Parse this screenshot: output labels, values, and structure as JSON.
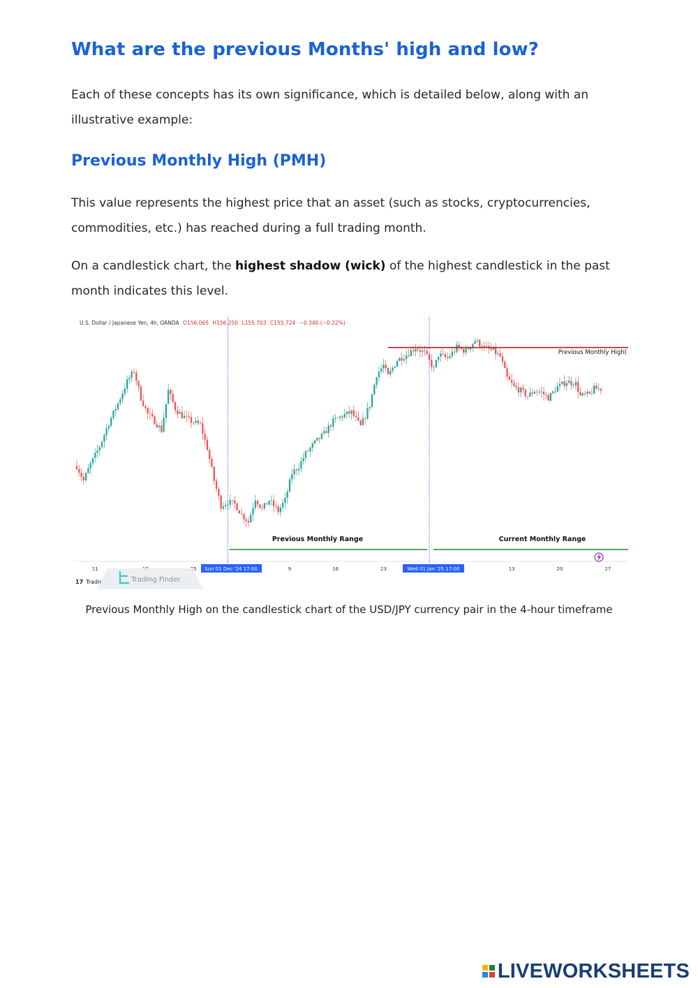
{
  "title": "What are the previous Months' high and low?",
  "intro": "Each of these concepts has its own significance, which is detailed below, along with an illustrative example:",
  "pmh": {
    "heading": "Previous Monthly High (PMH)",
    "p1": "This value represents the highest price that an asset (such as stocks, cryptocurrencies, commodities, etc.) has reached during a full trading month.",
    "p2_pre": "On a candlestick chart, the ",
    "p2_bold": "highest shadow (wick)",
    "p2_post": " of the highest candlestick in the past month indicates this level."
  },
  "figure": {
    "caption": "Previous Monthly High on the candlestick chart of the USD/JPY currency pair in the 4-hour timeframe",
    "symbol_label": "U.S. Dollar / Japanese Yen, 4h, OANDA",
    "ohlc": {
      "o": "O156.065",
      "h": "H156.250",
      "l": "L155.703",
      "c": "C155.724",
      "chg": "−0.340 (−0.22%)"
    },
    "pmh_label": "Previous Monthly High(",
    "prev_range_label": "Previous Monthly Range",
    "curr_range_label": "Current Monthly Range",
    "date_marker_1": "Sun 01 Dec '24   17:00",
    "date_marker_2": "Wed 01 Jan '25   17:00",
    "x_ticks": [
      "11",
      "18",
      "25",
      "9",
      "16",
      "23",
      "13",
      "20",
      "27"
    ],
    "watermark_text": "Trading Finder",
    "tv_badge": "Tradin",
    "colors": {
      "up": "#26a69a",
      "down": "#ef5350",
      "pmh_line": "#b71c1c",
      "range_line": "#1b8a1b",
      "marker": "#2962ff"
    }
  },
  "chart_data": {
    "type": "candlestick",
    "title": "U.S. Dollar / Japanese Yen, 4h, OANDA",
    "xlabel": "",
    "ylabel": "",
    "ylim": [
      148.5,
      159.3
    ],
    "x_ticks": [
      "11",
      "18",
      "25",
      "9",
      "16",
      "23",
      "13",
      "20",
      "27"
    ],
    "x_tick_index": [
      8,
      30,
      51,
      93,
      113,
      134,
      190,
      211,
      232
    ],
    "month_boundaries_index": [
      66,
      154
    ],
    "path": [
      [
        0,
        152.4
      ],
      [
        3,
        151.6
      ],
      [
        6,
        152.5
      ],
      [
        10,
        153.5
      ],
      [
        14,
        154.8
      ],
      [
        18,
        155.9
      ],
      [
        22,
        157.1
      ],
      [
        25,
        157.7
      ],
      [
        28,
        156.2
      ],
      [
        31,
        155.3
      ],
      [
        34,
        154.9
      ],
      [
        37,
        154.4
      ],
      [
        40,
        156.6
      ],
      [
        43,
        155.6
      ],
      [
        46,
        155.2
      ],
      [
        50,
        154.9
      ],
      [
        54,
        154.7
      ],
      [
        57,
        153.4
      ],
      [
        60,
        151.6
      ],
      [
        63,
        150.2
      ],
      [
        66,
        150.4
      ],
      [
        69,
        150.3
      ],
      [
        72,
        149.7
      ],
      [
        75,
        149.3
      ],
      [
        78,
        150.6
      ],
      [
        81,
        150.0
      ],
      [
        84,
        150.5
      ],
      [
        88,
        149.9
      ],
      [
        91,
        150.5
      ],
      [
        94,
        152.0
      ],
      [
        97,
        152.4
      ],
      [
        100,
        153.1
      ],
      [
        104,
        153.7
      ],
      [
        108,
        154.2
      ],
      [
        112,
        154.9
      ],
      [
        116,
        155.2
      ],
      [
        120,
        155.4
      ],
      [
        124,
        154.6
      ],
      [
        128,
        155.8
      ],
      [
        131,
        157.5
      ],
      [
        134,
        158.0
      ],
      [
        136,
        157.4
      ],
      [
        140,
        158.3
      ],
      [
        144,
        158.6
      ],
      [
        148,
        159.0
      ],
      [
        152,
        158.7
      ],
      [
        156,
        157.8
      ],
      [
        158,
        158.6
      ],
      [
        162,
        158.4
      ],
      [
        166,
        159.0
      ],
      [
        170,
        158.8
      ],
      [
        174,
        159.4
      ],
      [
        178,
        159.0
      ],
      [
        182,
        158.8
      ],
      [
        185,
        158.5
      ],
      [
        188,
        157.3
      ],
      [
        191,
        156.8
      ],
      [
        194,
        156.6
      ],
      [
        197,
        156.3
      ],
      [
        200,
        156.6
      ],
      [
        203,
        156.5
      ],
      [
        206,
        156.2
      ],
      [
        210,
        156.8
      ],
      [
        214,
        157.1
      ],
      [
        218,
        157.0
      ],
      [
        220,
        156.3
      ],
      [
        224,
        156.4
      ],
      [
        226,
        156.7
      ]
    ],
    "pmh_value": 159.0,
    "legend": "none",
    "grid": false
  }
}
